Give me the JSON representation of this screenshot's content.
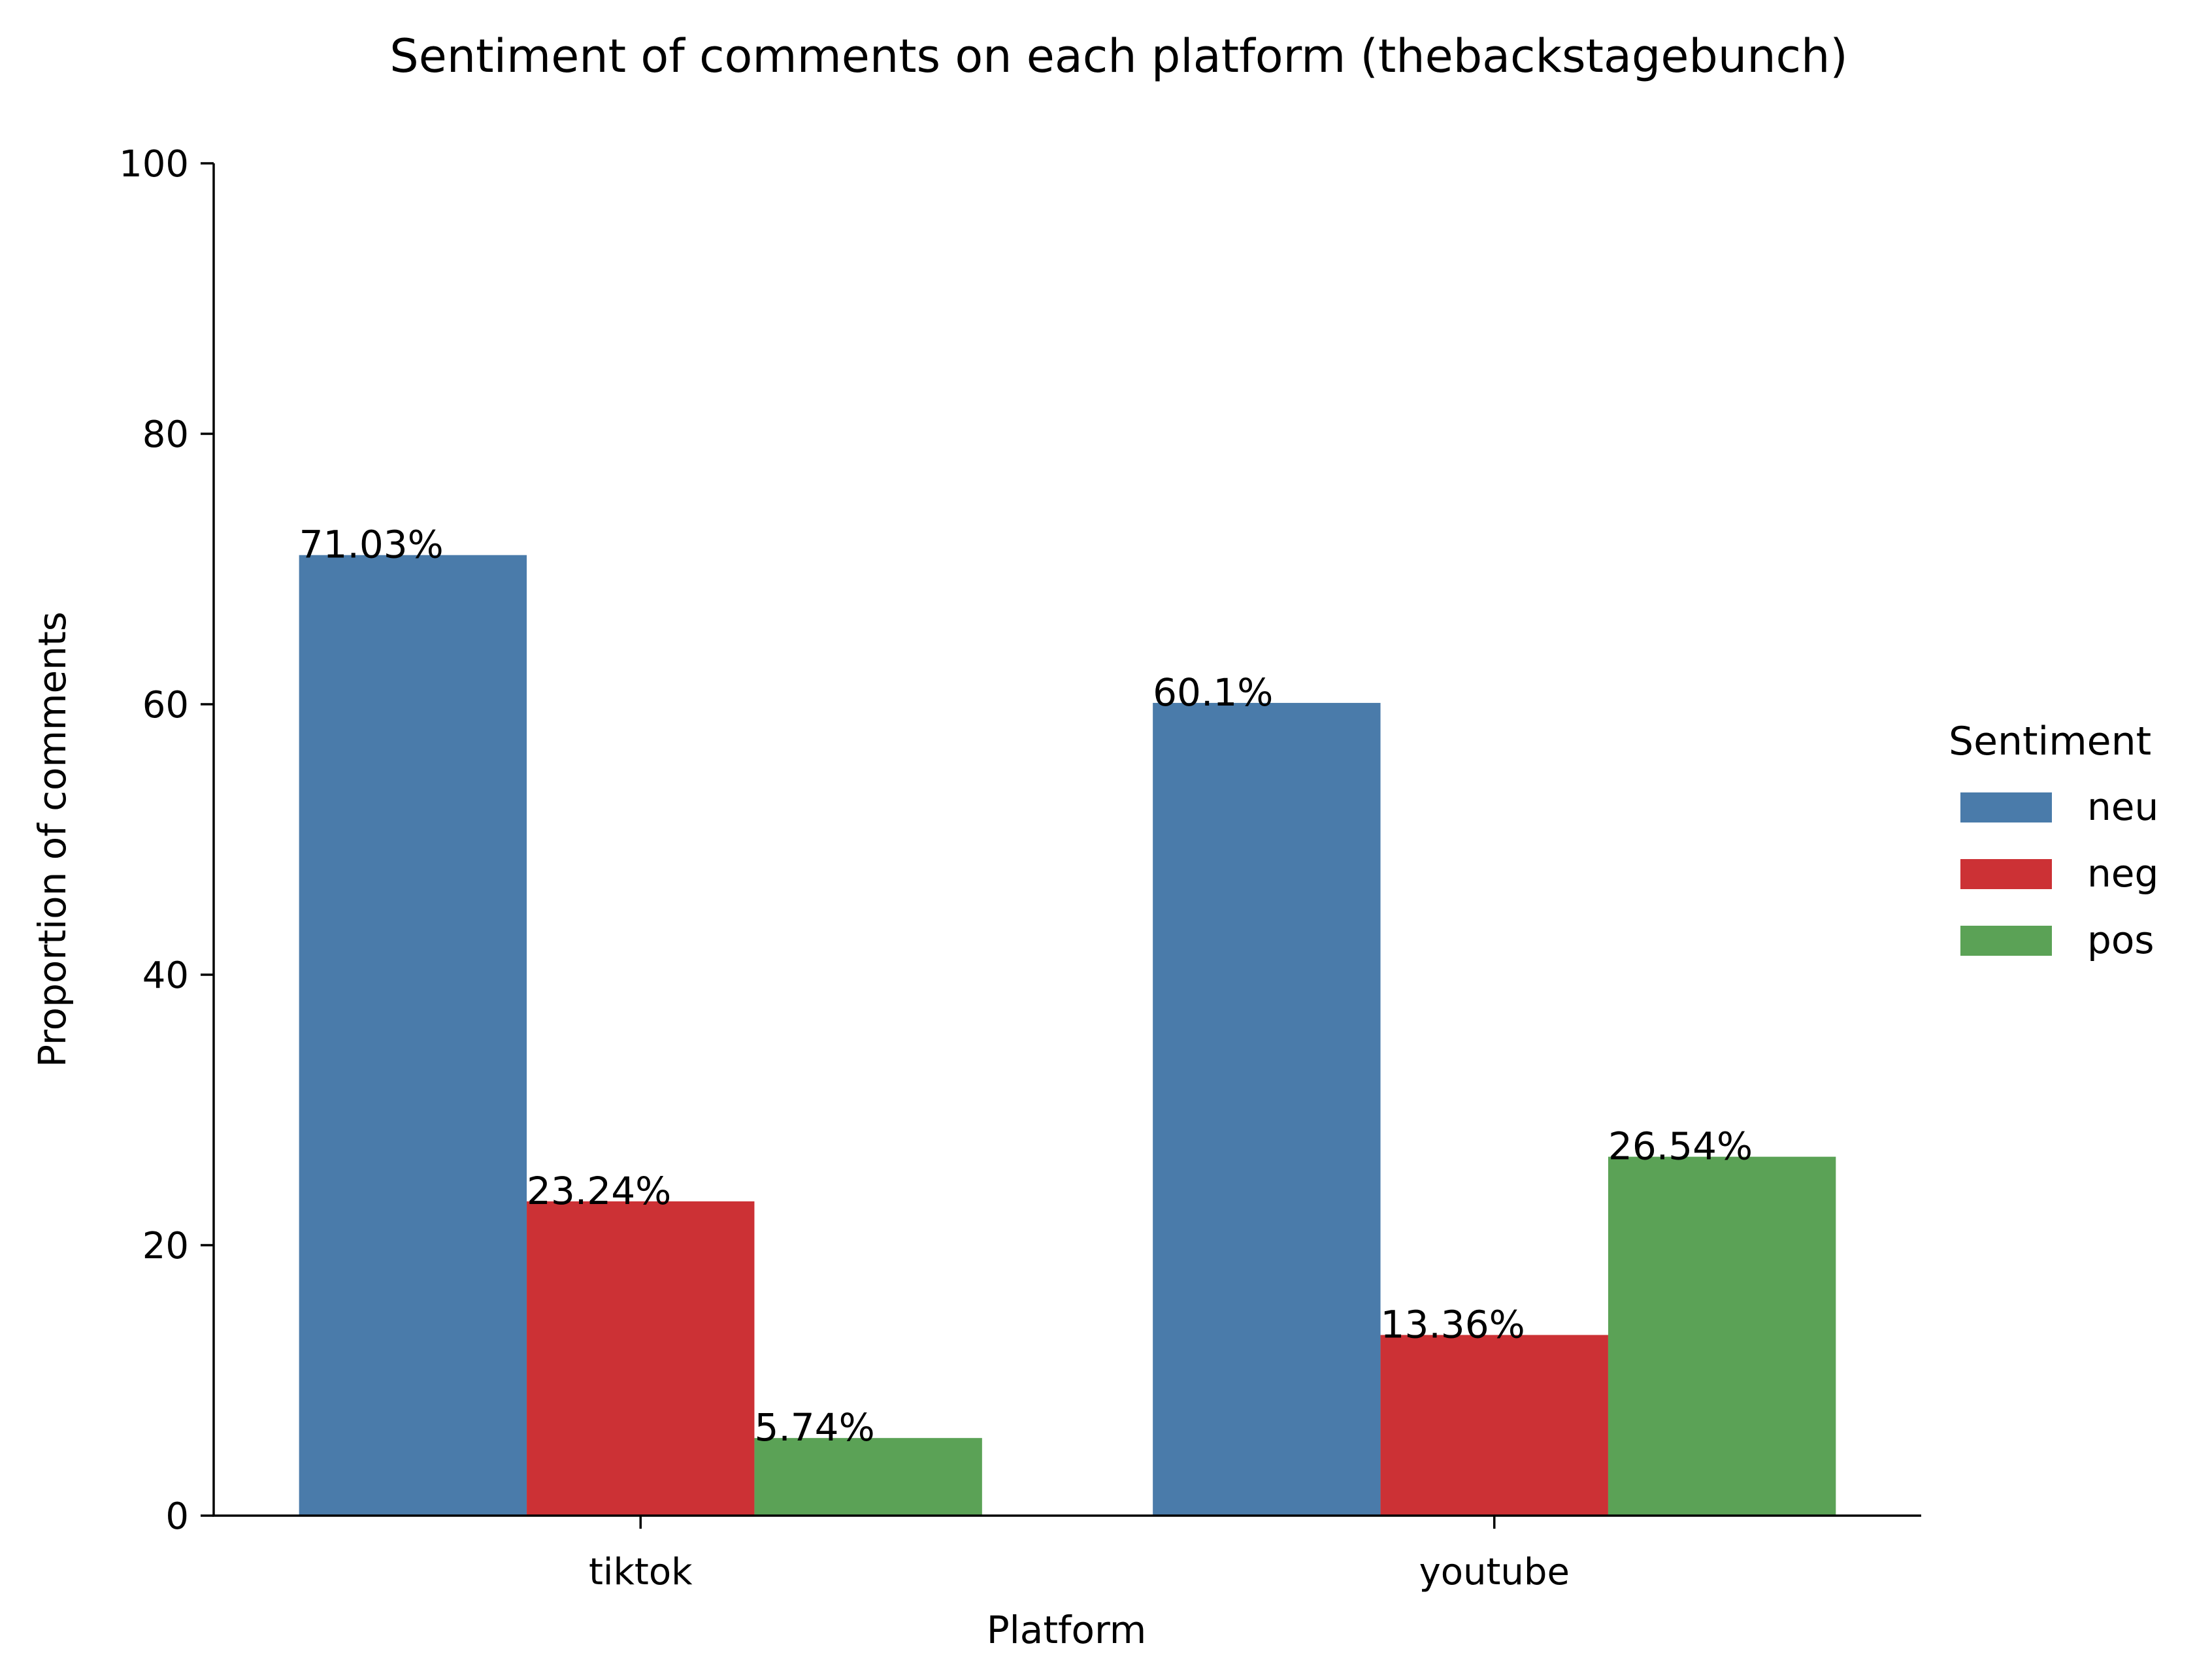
{
  "chart_data": {
    "type": "bar",
    "title": "Sentiment of comments on each platform (thebackstagebunch)",
    "xlabel": "Platform",
    "ylabel": "Proportion of comments",
    "categories": [
      "tiktok",
      "youtube"
    ],
    "ylim": [
      0,
      100
    ],
    "yticks": [
      0,
      20,
      40,
      60,
      80,
      100
    ],
    "grid": false,
    "legend": {
      "title": "Sentiment",
      "placement": "right"
    },
    "series": [
      {
        "name": "neu",
        "color": "#4a7baa",
        "values": [
          71.03,
          60.1
        ],
        "labels": [
          "71.03%",
          "60.1%"
        ]
      },
      {
        "name": "neg",
        "color": "#cc3135",
        "values": [
          23.24,
          13.36
        ],
        "labels": [
          "23.24%",
          "13.36%"
        ]
      },
      {
        "name": "pos",
        "color": "#5ba256",
        "values": [
          5.74,
          26.54
        ],
        "labels": [
          "5.74%",
          "26.54%"
        ]
      }
    ]
  }
}
